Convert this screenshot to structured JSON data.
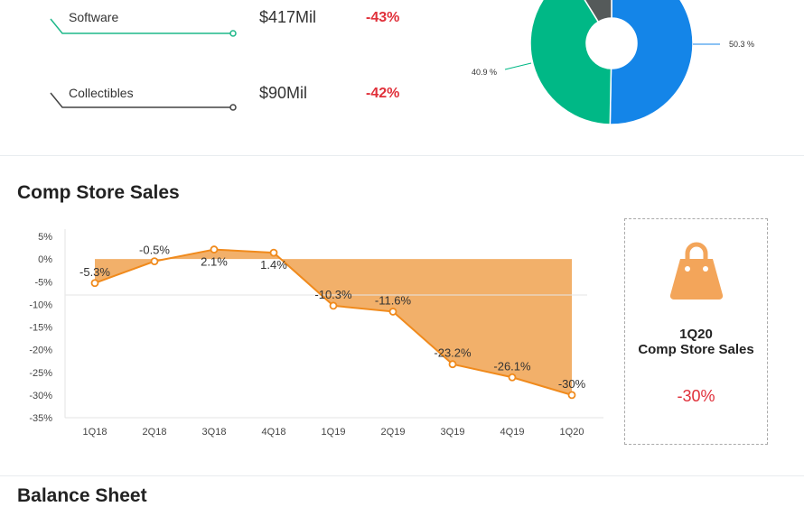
{
  "segments": [
    {
      "label": "Software",
      "value": "$417Mil",
      "change": "-43%",
      "color": "#1fb88a"
    },
    {
      "label": "Collectibles",
      "value": "$90Mil",
      "change": "-42%",
      "color": "#444444"
    }
  ],
  "donut": {
    "slices": [
      {
        "value": 50.3,
        "label": "50.3 %",
        "color": "#1485e8"
      },
      {
        "value": 40.9,
        "label": "40.9 %",
        "color": "#00b886"
      },
      {
        "value": 8.8,
        "label": "",
        "color": "#555a5a"
      }
    ]
  },
  "comp_section": {
    "title": "Comp Store Sales"
  },
  "chart_data": {
    "type": "area",
    "categories": [
      "1Q18",
      "2Q18",
      "3Q18",
      "4Q18",
      "1Q19",
      "2Q19",
      "3Q19",
      "4Q19",
      "1Q20"
    ],
    "values": [
      -5.3,
      -0.5,
      2.1,
      1.4,
      -10.3,
      -11.6,
      -23.2,
      -26.1,
      -30
    ],
    "data_labels": [
      "-5.3%",
      "-0.5%",
      "2.1%",
      "1.4%",
      "-10.3%",
      "-11.6%",
      "-23.2%",
      "-26.1%",
      "-30%"
    ],
    "yticks": [
      "5%",
      "0%",
      "-5%",
      "-10%",
      "-15%",
      "-20%",
      "-25%",
      "-30%",
      "-35%"
    ],
    "ylim": [
      -35,
      5
    ],
    "line_color": "#f08a1c",
    "fill_color": "#f2b06a"
  },
  "summary_box": {
    "period": "1Q20",
    "label": "Comp Store Sales",
    "value": "-30%",
    "icon": "shopping-bag-icon",
    "icon_color": "#f3a55a"
  },
  "next_section": {
    "title": "Balance Sheet"
  }
}
